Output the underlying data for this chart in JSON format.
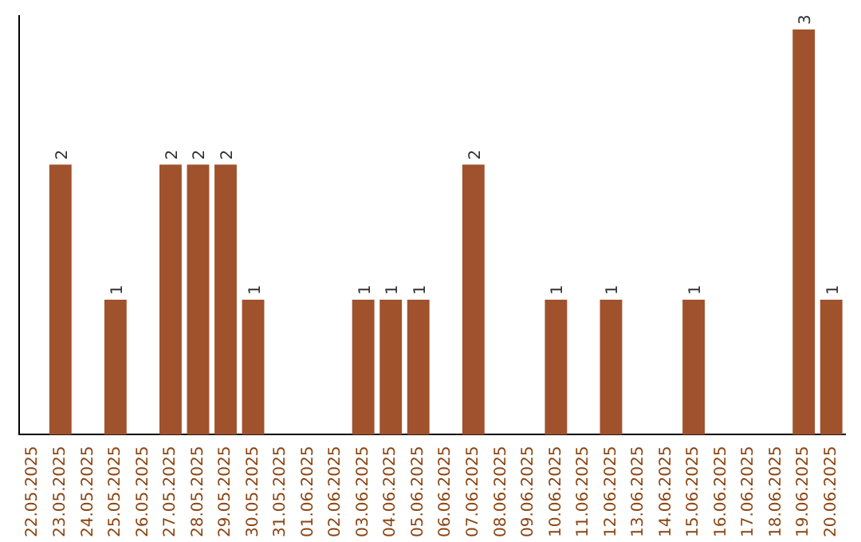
{
  "chart_data": {
    "type": "bar",
    "categories": [
      "22.05.2025",
      "23.05.2025",
      "24.05.2025",
      "25.05.2025",
      "26.05.2025",
      "27.05.2025",
      "28.05.2025",
      "29.05.2025",
      "30.05.2025",
      "31.05.2025",
      "01.06.2025",
      "02.06.2025",
      "03.06.2025",
      "04.06.2025",
      "05.06.2025",
      "06.06.2025",
      "07.06.2025",
      "08.06.2025",
      "09.06.2025",
      "10.06.2025",
      "11.06.2025",
      "12.06.2025",
      "13.06.2025",
      "14.06.2025",
      "15.06.2025",
      "16.06.2025",
      "17.06.2025",
      "18.06.2025",
      "19.06.2025",
      "20.06.2025"
    ],
    "values": [
      0,
      2,
      0,
      1,
      0,
      2,
      2,
      2,
      1,
      0,
      0,
      0,
      1,
      1,
      1,
      0,
      2,
      0,
      0,
      1,
      0,
      1,
      0,
      0,
      1,
      0,
      0,
      0,
      3,
      1
    ],
    "value_labels": [
      null,
      "2",
      null,
      "1",
      null,
      "2",
      "2",
      "2",
      "1",
      null,
      null,
      null,
      "1",
      "1",
      "1",
      null,
      "2",
      null,
      null,
      "1",
      null,
      "1",
      null,
      null,
      "1",
      null,
      null,
      null,
      "3",
      "1"
    ],
    "color": "#a0522d",
    "ylim": [
      0,
      3.1
    ],
    "tick_labels": "x",
    "grid": false,
    "legend": false
  }
}
